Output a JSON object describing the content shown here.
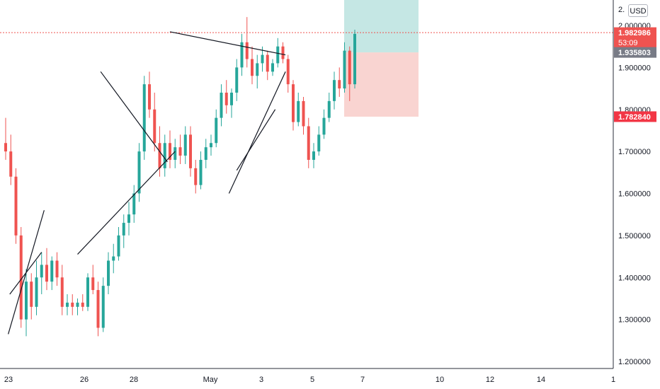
{
  "currency_button": "USD",
  "colors": {
    "up": "#26a69a",
    "down": "#ef5350",
    "target_zone": "#b2dfdb",
    "stop_zone": "#f8c9c6",
    "last_price": "#ef5350",
    "entry_badge": "#787b86",
    "stop_badge": "#f23645",
    "trendline": "#131722"
  },
  "chart_data": {
    "type": "candlestick",
    "title": "",
    "xlabel": "",
    "ylabel": "",
    "ylim": [
      1.18,
      2.08
    ],
    "grid": false,
    "x_ticks": [
      "23",
      "26",
      "28",
      "May",
      "3",
      "5",
      "7",
      "10",
      "12",
      "14",
      "1"
    ],
    "y_ticks": [
      "2.000000",
      "1.900000",
      "1.800000",
      "1.700000",
      "1.600000",
      "1.500000",
      "1.400000",
      "1.300000",
      "1.200000"
    ],
    "y_tick_values": [
      2.0,
      1.9,
      1.8,
      1.7,
      1.6,
      1.5,
      1.4,
      1.3,
      1.2
    ],
    "y_top_label_partial": "2.",
    "price_labels": {
      "last_price": "1.982986",
      "countdown": "53:09",
      "entry": "1.935803",
      "stop": "1.782840"
    },
    "position": {
      "entry": 1.9358,
      "stop": 1.7828,
      "target": 2.08
    },
    "series": [
      {
        "values": [
          [
            1.72,
            1.78,
            1.68,
            1.7
          ],
          [
            1.7,
            1.74,
            1.62,
            1.64
          ],
          [
            1.64,
            1.66,
            1.48,
            1.5
          ],
          [
            1.5,
            1.52,
            1.28,
            1.3
          ],
          [
            1.3,
            1.42,
            1.26,
            1.39
          ],
          [
            1.39,
            1.41,
            1.3,
            1.33
          ],
          [
            1.33,
            1.44,
            1.31,
            1.4
          ],
          [
            1.4,
            1.46,
            1.36,
            1.43
          ],
          [
            1.43,
            1.47,
            1.37,
            1.39
          ],
          [
            1.39,
            1.45,
            1.37,
            1.44
          ],
          [
            1.44,
            1.46,
            1.38,
            1.4
          ],
          [
            1.4,
            1.43,
            1.31,
            1.33
          ],
          [
            1.33,
            1.36,
            1.31,
            1.34
          ],
          [
            1.34,
            1.36,
            1.31,
            1.33
          ],
          [
            1.33,
            1.35,
            1.31,
            1.34
          ],
          [
            1.34,
            1.36,
            1.32,
            1.33
          ],
          [
            1.33,
            1.41,
            1.32,
            1.4
          ],
          [
            1.4,
            1.43,
            1.36,
            1.37
          ],
          [
            1.37,
            1.39,
            1.26,
            1.28
          ],
          [
            1.28,
            1.4,
            1.27,
            1.38
          ],
          [
            1.38,
            1.46,
            1.36,
            1.44
          ],
          [
            1.44,
            1.48,
            1.41,
            1.45
          ],
          [
            1.45,
            1.52,
            1.44,
            1.5
          ],
          [
            1.5,
            1.55,
            1.47,
            1.53
          ],
          [
            1.53,
            1.58,
            1.5,
            1.55
          ],
          [
            1.55,
            1.62,
            1.53,
            1.6
          ],
          [
            1.6,
            1.72,
            1.58,
            1.7
          ],
          [
            1.7,
            1.88,
            1.68,
            1.86
          ],
          [
            1.86,
            1.89,
            1.78,
            1.8
          ],
          [
            1.8,
            1.84,
            1.7,
            1.72
          ],
          [
            1.72,
            1.76,
            1.64,
            1.66
          ],
          [
            1.66,
            1.74,
            1.64,
            1.72
          ],
          [
            1.72,
            1.75,
            1.66,
            1.68
          ],
          [
            1.68,
            1.73,
            1.66,
            1.71
          ],
          [
            1.71,
            1.74,
            1.67,
            1.69
          ],
          [
            1.69,
            1.76,
            1.67,
            1.74
          ],
          [
            1.74,
            1.76,
            1.64,
            1.66
          ],
          [
            1.66,
            1.68,
            1.6,
            1.62
          ],
          [
            1.62,
            1.7,
            1.61,
            1.68
          ],
          [
            1.68,
            1.73,
            1.66,
            1.71
          ],
          [
            1.71,
            1.74,
            1.69,
            1.72
          ],
          [
            1.72,
            1.8,
            1.71,
            1.78
          ],
          [
            1.78,
            1.86,
            1.76,
            1.84
          ],
          [
            1.84,
            1.87,
            1.79,
            1.81
          ],
          [
            1.81,
            1.85,
            1.78,
            1.84
          ],
          [
            1.84,
            1.92,
            1.82,
            1.9
          ],
          [
            1.9,
            1.98,
            1.88,
            1.96
          ],
          [
            1.96,
            2.02,
            1.9,
            1.92
          ],
          [
            1.92,
            1.95,
            1.86,
            1.88
          ],
          [
            1.88,
            1.93,
            1.85,
            1.91
          ],
          [
            1.91,
            1.95,
            1.89,
            1.93
          ],
          [
            1.93,
            1.94,
            1.87,
            1.89
          ],
          [
            1.89,
            1.92,
            1.88,
            1.91
          ],
          [
            1.91,
            1.97,
            1.9,
            1.95
          ],
          [
            1.95,
            1.96,
            1.91,
            1.92
          ],
          [
            1.92,
            1.93,
            1.84,
            1.86
          ],
          [
            1.86,
            1.87,
            1.75,
            1.77
          ],
          [
            1.77,
            1.84,
            1.76,
            1.82
          ],
          [
            1.82,
            1.83,
            1.74,
            1.76
          ],
          [
            1.76,
            1.78,
            1.66,
            1.68
          ],
          [
            1.68,
            1.72,
            1.66,
            1.7
          ],
          [
            1.7,
            1.76,
            1.69,
            1.74
          ],
          [
            1.74,
            1.8,
            1.73,
            1.78
          ],
          [
            1.78,
            1.84,
            1.77,
            1.82
          ],
          [
            1.82,
            1.89,
            1.8,
            1.87
          ],
          [
            1.87,
            1.9,
            1.83,
            1.85
          ],
          [
            1.85,
            1.96,
            1.84,
            1.94
          ],
          [
            1.94,
            1.95,
            1.82,
            1.86
          ],
          [
            1.86,
            1.99,
            1.85,
            1.98
          ]
        ]
      }
    ],
    "trendlines": [
      {
        "from": [
          0.5,
          1.265
        ],
        "to": [
          7.5,
          1.56
        ]
      },
      {
        "from": [
          0.8,
          1.36
        ],
        "to": [
          7.0,
          1.46
        ]
      },
      {
        "from": [
          18.5,
          1.89
        ],
        "to": [
          31.5,
          1.675
        ]
      },
      {
        "from": [
          14.0,
          1.455
        ],
        "to": [
          33.0,
          1.7
        ]
      },
      {
        "from": [
          32.0,
          1.985
        ],
        "to": [
          54.5,
          1.93
        ]
      },
      {
        "from": [
          43.5,
          1.6
        ],
        "to": [
          54.5,
          1.89
        ]
      },
      {
        "from": [
          45.0,
          1.655
        ],
        "to": [
          52.5,
          1.8
        ]
      }
    ]
  }
}
